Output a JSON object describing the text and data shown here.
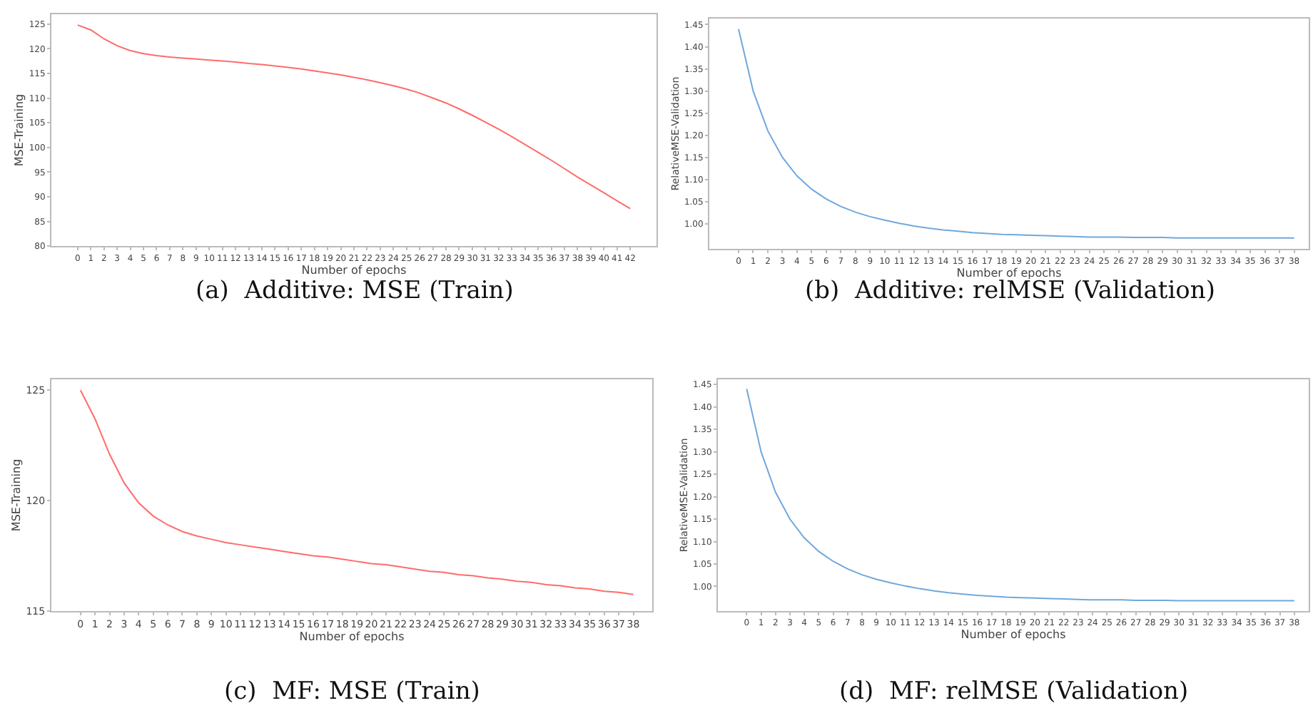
{
  "chart_data": [
    {
      "type": "line",
      "title": "(a)  Additive: MSE (Train)",
      "xlabel": "Number of epochs",
      "ylabel": "MSE-Training",
      "x": [
        0,
        1,
        2,
        3,
        4,
        5,
        6,
        7,
        8,
        9,
        10,
        11,
        12,
        13,
        14,
        15,
        16,
        17,
        18,
        19,
        20,
        21,
        22,
        23,
        24,
        25,
        26,
        27,
        28,
        29,
        30,
        31,
        32,
        33,
        34,
        35,
        36,
        37,
        38,
        39,
        40,
        41,
        42
      ],
      "series": [
        {
          "color": "#ff6b6b",
          "values": [
            124.8,
            123.8,
            122,
            120.6,
            119.6,
            119,
            118.6,
            118.3,
            118.1,
            117.9,
            117.7,
            117.5,
            117.3,
            117.0,
            116.8,
            116.5,
            116.2,
            115.9,
            115.5,
            115.1,
            114.7,
            114.2,
            113.7,
            113.1,
            112.5,
            111.8,
            111.0,
            110.0,
            109.0,
            107.8,
            106.5,
            105.1,
            103.7,
            102.2,
            100.6,
            99.0,
            97.4,
            95.7,
            94.0,
            92.4,
            90.8,
            89.2,
            87.6
          ]
        }
      ],
      "xlim": [
        -2,
        44
      ],
      "xticks": [
        0,
        1,
        2,
        3,
        4,
        5,
        6,
        7,
        8,
        9,
        10,
        11,
        12,
        13,
        14,
        15,
        16,
        17,
        18,
        19,
        20,
        21,
        22,
        23,
        24,
        25,
        26,
        27,
        28,
        29,
        30,
        31,
        32,
        33,
        34,
        35,
        36,
        37,
        38,
        39,
        40,
        41,
        42
      ],
      "ylim": [
        80,
        127
      ],
      "yticks": [
        80,
        85,
        90,
        95,
        100,
        105,
        110,
        115,
        120,
        125
      ]
    },
    {
      "type": "line",
      "title": "(b)  Additive: relMSE (Validation)",
      "xlabel": "Number of epochs",
      "ylabel": "RelativeMSE-Validation",
      "x": [
        0,
        1,
        2,
        3,
        4,
        5,
        6,
        7,
        8,
        9,
        10,
        11,
        12,
        13,
        14,
        15,
        16,
        17,
        18,
        19,
        20,
        21,
        22,
        23,
        24,
        25,
        26,
        27,
        28,
        29,
        30,
        31,
        32,
        33,
        34,
        35,
        36,
        37,
        38
      ],
      "series": [
        {
          "color": "#6fa8dc",
          "values": [
            1.44,
            1.3,
            1.21,
            1.15,
            1.108,
            1.078,
            1.056,
            1.039,
            1.026,
            1.016,
            1.008,
            1.001,
            0.995,
            0.99,
            0.986,
            0.983,
            0.98,
            0.978,
            0.976,
            0.975,
            0.974,
            0.973,
            0.972,
            0.971,
            0.97,
            0.97,
            0.97,
            0.969,
            0.969,
            0.969,
            0.968,
            0.968,
            0.968,
            0.968,
            0.968,
            0.968,
            0.968,
            0.968,
            0.968
          ]
        }
      ],
      "xlim": [
        -2,
        39
      ],
      "xticks": [
        0,
        1,
        2,
        3,
        4,
        5,
        6,
        7,
        8,
        9,
        10,
        11,
        12,
        13,
        14,
        15,
        16,
        17,
        18,
        19,
        20,
        21,
        22,
        23,
        24,
        25,
        26,
        27,
        28,
        29,
        30,
        31,
        32,
        33,
        34,
        35,
        36,
        37,
        38
      ],
      "ylim": [
        0.943,
        1.464
      ],
      "yticks": [
        {
          "value": 1.0,
          "label": "1.00"
        },
        1.05,
        {
          "value": 1.1,
          "label": "1.10"
        },
        1.15,
        {
          "value": 1.2,
          "label": "1.20"
        },
        1.25,
        {
          "value": 1.3,
          "label": "1.30"
        },
        1.35,
        {
          "value": 1.4,
          "label": "1.40"
        },
        1.45
      ]
    },
    {
      "type": "line",
      "title": "(c)  MF: MSE (Train)",
      "xlabel": "Number of epochs",
      "ylabel": "MSE-Training",
      "x": [
        0,
        1,
        2,
        3,
        4,
        5,
        6,
        7,
        8,
        9,
        10,
        11,
        12,
        13,
        14,
        15,
        16,
        17,
        18,
        19,
        20,
        21,
        22,
        23,
        24,
        25,
        26,
        27,
        28,
        29,
        30,
        31,
        32,
        33,
        34,
        35,
        36,
        37,
        38
      ],
      "series": [
        {
          "color": "#ff6b6b",
          "values": [
            125,
            123.7,
            122.1,
            120.8,
            119.9,
            119.3,
            118.9,
            118.6,
            118.4,
            118.25,
            118.1,
            118.0,
            117.9,
            117.8,
            117.7,
            117.6,
            117.5,
            117.45,
            117.35,
            117.25,
            117.15,
            117.1,
            117.0,
            116.9,
            116.8,
            116.75,
            116.65,
            116.6,
            116.5,
            116.45,
            116.35,
            116.3,
            116.2,
            116.15,
            116.05,
            116.0,
            115.9,
            115.85,
            115.75
          ]
        }
      ],
      "xlim": [
        -2,
        39.3
      ],
      "xticks": [
        0,
        1,
        2,
        3,
        4,
        5,
        6,
        7,
        8,
        9,
        10,
        11,
        12,
        13,
        14,
        15,
        16,
        17,
        18,
        19,
        20,
        21,
        22,
        23,
        24,
        25,
        26,
        27,
        28,
        29,
        30,
        31,
        32,
        33,
        34,
        35,
        36,
        37,
        38
      ],
      "ylim": [
        115,
        125.5
      ],
      "yticks": [
        115,
        120,
        125
      ]
    },
    {
      "type": "line",
      "title": "(d)  MF: relMSE (Validation)",
      "xlabel": "Number of epochs",
      "ylabel": "RelativeMSE-Validation",
      "x": [
        0,
        1,
        2,
        3,
        4,
        5,
        6,
        7,
        8,
        9,
        10,
        11,
        12,
        13,
        14,
        15,
        16,
        17,
        18,
        19,
        20,
        21,
        22,
        23,
        24,
        25,
        26,
        27,
        28,
        29,
        30,
        31,
        32,
        33,
        34,
        35,
        36,
        37,
        38
      ],
      "series": [
        {
          "color": "#6fa8dc",
          "values": [
            1.44,
            1.3,
            1.21,
            1.15,
            1.108,
            1.078,
            1.056,
            1.039,
            1.026,
            1.016,
            1.008,
            1.001,
            0.995,
            0.99,
            0.986,
            0.983,
            0.98,
            0.978,
            0.976,
            0.975,
            0.974,
            0.973,
            0.972,
            0.971,
            0.97,
            0.97,
            0.97,
            0.969,
            0.969,
            0.969,
            0.968,
            0.968,
            0.968,
            0.968,
            0.968,
            0.968,
            0.968,
            0.968,
            0.968
          ]
        }
      ],
      "xlim": [
        -2,
        39
      ],
      "xticks": [
        0,
        1,
        2,
        3,
        4,
        5,
        6,
        7,
        8,
        9,
        10,
        11,
        12,
        13,
        14,
        15,
        16,
        17,
        18,
        19,
        20,
        21,
        22,
        23,
        24,
        25,
        26,
        27,
        28,
        29,
        30,
        31,
        32,
        33,
        34,
        35,
        36,
        37,
        38
      ],
      "ylim": [
        0.945,
        1.462
      ],
      "yticks": [
        {
          "value": 1.0,
          "label": "1.00"
        },
        1.05,
        {
          "value": 1.1,
          "label": "1.10"
        },
        1.15,
        {
          "value": 1.2,
          "label": "1.20"
        },
        1.25,
        {
          "value": 1.3,
          "label": "1.30"
        },
        1.35,
        {
          "value": 1.4,
          "label": "1.40"
        },
        1.45
      ]
    }
  ]
}
